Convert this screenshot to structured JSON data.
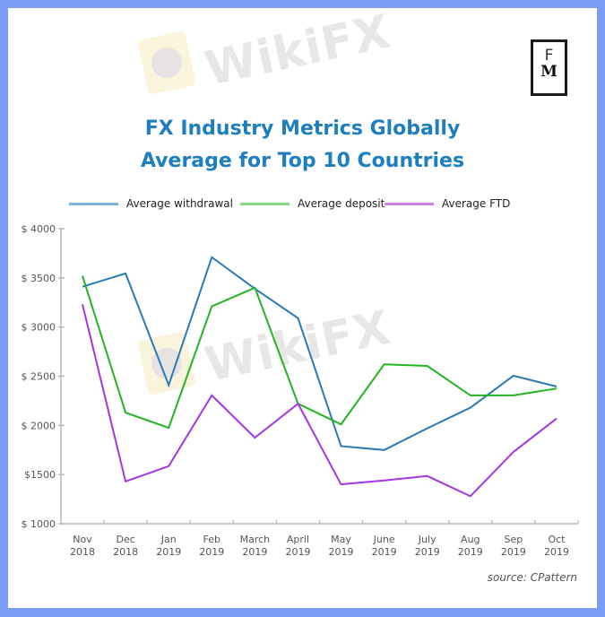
{
  "frame": {
    "border_color": "#7a9cf7",
    "background": "#ffffff"
  },
  "watermark": {
    "text": "WikiFX",
    "icon": "eagle-icon"
  },
  "logo": {
    "top": "F",
    "bottom": "M"
  },
  "source": "source: CPattern",
  "chart_data": {
    "type": "line",
    "title": "FX Industry Metrics Globally",
    "subtitle": "Average for Top 10 Countries",
    "title_color": "#1e7fc0",
    "xlabel": "",
    "ylabel": "",
    "categories": [
      [
        "Nov",
        "2018"
      ],
      [
        "Dec",
        "2018"
      ],
      [
        "Jan",
        "2019"
      ],
      [
        "Feb",
        "2019"
      ],
      [
        "March",
        "2019"
      ],
      [
        "April",
        "2019"
      ],
      [
        "May",
        "2019"
      ],
      [
        "June",
        "2019"
      ],
      [
        "July",
        "2019"
      ],
      [
        "Aug",
        "2019"
      ],
      [
        "Sep",
        "2019"
      ],
      [
        "Oct",
        "2019"
      ]
    ],
    "ylim": [
      1000,
      4000
    ],
    "yticks": [
      1000,
      1500,
      2000,
      2500,
      3000,
      3500,
      4000
    ],
    "ytick_labels": [
      "$ 1000",
      "$1500",
      "$ 2000",
      "$ 2500",
      "$ 3000",
      "$ 3500",
      "$ 4000"
    ],
    "grid": false,
    "legend_position": "top",
    "series": [
      {
        "name": "Average withdrawal",
        "color": "#2a7ab8",
        "legend_color": "#7fb2d6",
        "values": [
          3410,
          3545,
          2410,
          3710,
          3390,
          3090,
          1790,
          1750,
          1970,
          2180,
          2505,
          2395
        ]
      },
      {
        "name": "Average deposit",
        "color": "#22b522",
        "legend_color": "#8ad68a",
        "values": [
          3520,
          2130,
          1975,
          3210,
          3400,
          2220,
          2010,
          2620,
          2605,
          2305,
          2305,
          2375
        ]
      },
      {
        "name": "Average FTD",
        "color": "#a336e6",
        "legend_color": "#c784ee",
        "values": [
          3230,
          1430,
          1585,
          2305,
          1875,
          2220,
          1400,
          1440,
          1485,
          1280,
          1730,
          2070
        ]
      }
    ]
  }
}
